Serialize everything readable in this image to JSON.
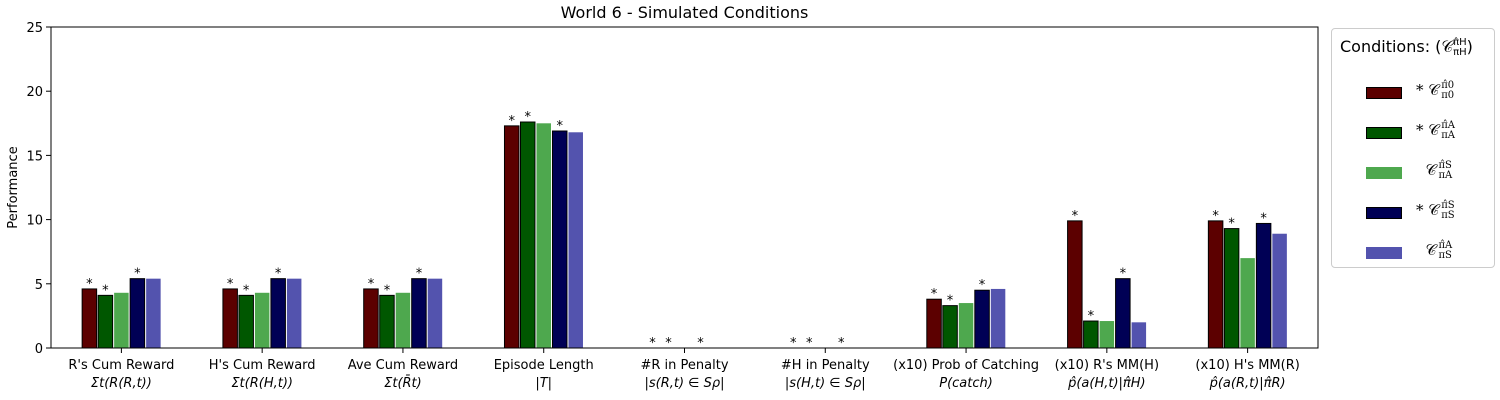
{
  "chart_data": {
    "type": "bar",
    "title": "World 6 - Simulated Conditions",
    "ylabel": "Performance",
    "xlabel": "",
    "ylim": [
      0,
      25
    ],
    "yticks": [
      0,
      5,
      10,
      15,
      20,
      25
    ],
    "grid": false,
    "legend_placement": "outside right",
    "legend_title": "Conditions: (𝒞π̂HπH)",
    "categories": [
      {
        "line1": "R's Cum Reward",
        "line2": "Σt(R(R,t))"
      },
      {
        "line1": "H's Cum Reward",
        "line2": "Σt(R(H,t))"
      },
      {
        "line1": "Ave Cum Reward",
        "line2": "Σt(R̄t)"
      },
      {
        "line1": "Episode Length",
        "line2": "|T|"
      },
      {
        "line1": "#R in Penalty",
        "line2": "|s(R,t) ∈ Sρ|"
      },
      {
        "line1": "#H in Penalty",
        "line2": "|s(H,t) ∈ Sρ|"
      },
      {
        "line1": "(x10) Prob of Catching",
        "line2": "P(catch)"
      },
      {
        "line1": "(x10) R's MM(H)",
        "line2": "p̂(a(H,t)|π̂H)"
      },
      {
        "line1": "(x10) H's MM(R)",
        "line2": "p̂(a(R,t)|π̂R)"
      }
    ],
    "series": [
      {
        "name": "* 𝒞 π̂0 / π0",
        "color": "#5c0000",
        "starred": true,
        "values": [
          4.6,
          4.6,
          4.6,
          17.3,
          0,
          0,
          3.8,
          9.9,
          9.9
        ],
        "stars": [
          true,
          true,
          true,
          true,
          true,
          true,
          true,
          true,
          true
        ]
      },
      {
        "name": "* 𝒞 π̂A / πA",
        "color": "#005700",
        "starred": true,
        "values": [
          4.1,
          4.1,
          4.1,
          17.6,
          0,
          0,
          3.3,
          2.1,
          9.3
        ],
        "stars": [
          true,
          true,
          true,
          true,
          true,
          true,
          true,
          true,
          true
        ]
      },
      {
        "name": "𝒞 π̂S / πA",
        "color": "#4ea84e",
        "starred": false,
        "values": [
          4.3,
          4.3,
          4.3,
          17.5,
          0,
          0,
          3.5,
          2.1,
          7.0
        ],
        "stars": [
          false,
          false,
          false,
          false,
          false,
          false,
          false,
          false,
          false
        ]
      },
      {
        "name": "* 𝒞 π̂S / πS",
        "color": "#000055",
        "starred": true,
        "values": [
          5.4,
          5.4,
          5.4,
          16.9,
          0,
          0,
          4.5,
          5.4,
          9.7
        ],
        "stars": [
          true,
          true,
          true,
          true,
          true,
          true,
          true,
          true,
          true
        ]
      },
      {
        "name": "𝒞 π̂A / πS",
        "color": "#5353ae",
        "starred": false,
        "values": [
          5.4,
          5.4,
          5.4,
          16.8,
          0,
          0,
          4.6,
          2.0,
          8.9
        ],
        "stars": [
          false,
          false,
          false,
          false,
          false,
          false,
          false,
          false,
          false
        ]
      }
    ],
    "legend_entries": [
      {
        "prefix": "*",
        "sub": "π0",
        "sup": "π̂0"
      },
      {
        "prefix": "*",
        "sub": "πA",
        "sup": "π̂A"
      },
      {
        "prefix": "",
        "sub": "πA",
        "sup": "π̂S"
      },
      {
        "prefix": "*",
        "sub": "πS",
        "sup": "π̂S"
      },
      {
        "prefix": "",
        "sub": "πS",
        "sup": "π̂A"
      }
    ],
    "legend_title_text": "Conditions: ",
    "legend_title_math": "𝒞",
    "legend_title_sub": "πH",
    "legend_title_sup": "π̂H",
    "star_symbol": "*"
  }
}
